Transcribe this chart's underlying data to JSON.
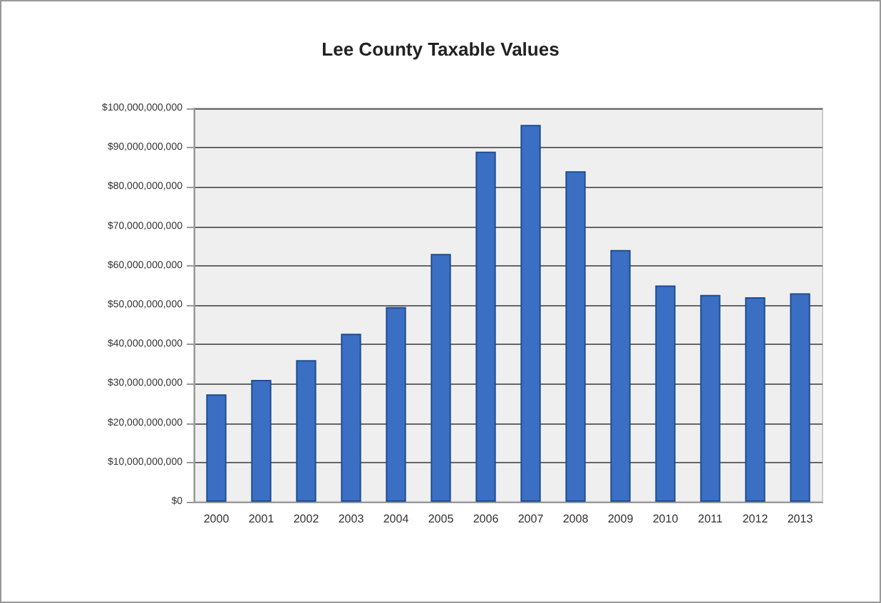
{
  "chart_data": {
    "type": "bar",
    "title": "Lee County Taxable Values",
    "categories": [
      "2000",
      "2001",
      "2002",
      "2003",
      "2004",
      "2005",
      "2006",
      "2007",
      "2008",
      "2009",
      "2010",
      "2011",
      "2012",
      "2013"
    ],
    "values": [
      27300000000,
      31000000000,
      36000000000,
      42700000000,
      49500000000,
      63000000000,
      89000000000,
      95800000000,
      84000000000,
      64000000000,
      55000000000,
      52600000000,
      52000000000,
      53000000000
    ],
    "color": "#3a6fc4",
    "ylim": [
      0,
      100000000000
    ],
    "yticks": [
      {
        "value": 0,
        "label": "$0"
      },
      {
        "value": 10000000000,
        "label": "$10,000,000,000"
      },
      {
        "value": 20000000000,
        "label": "$20,000,000,000"
      },
      {
        "value": 30000000000,
        "label": "$30,000,000,000"
      },
      {
        "value": 40000000000,
        "label": "$40,000,000,000"
      },
      {
        "value": 50000000000,
        "label": "$50,000,000,000"
      },
      {
        "value": 60000000000,
        "label": "$60,000,000,000"
      },
      {
        "value": 70000000000,
        "label": "$70,000,000,000"
      },
      {
        "value": 80000000000,
        "label": "$80,000,000,000"
      },
      {
        "value": 90000000000,
        "label": "$90,000,000,000"
      },
      {
        "value": 100000000000,
        "label": "$100,000,000,000"
      }
    ],
    "grid": "y"
  }
}
